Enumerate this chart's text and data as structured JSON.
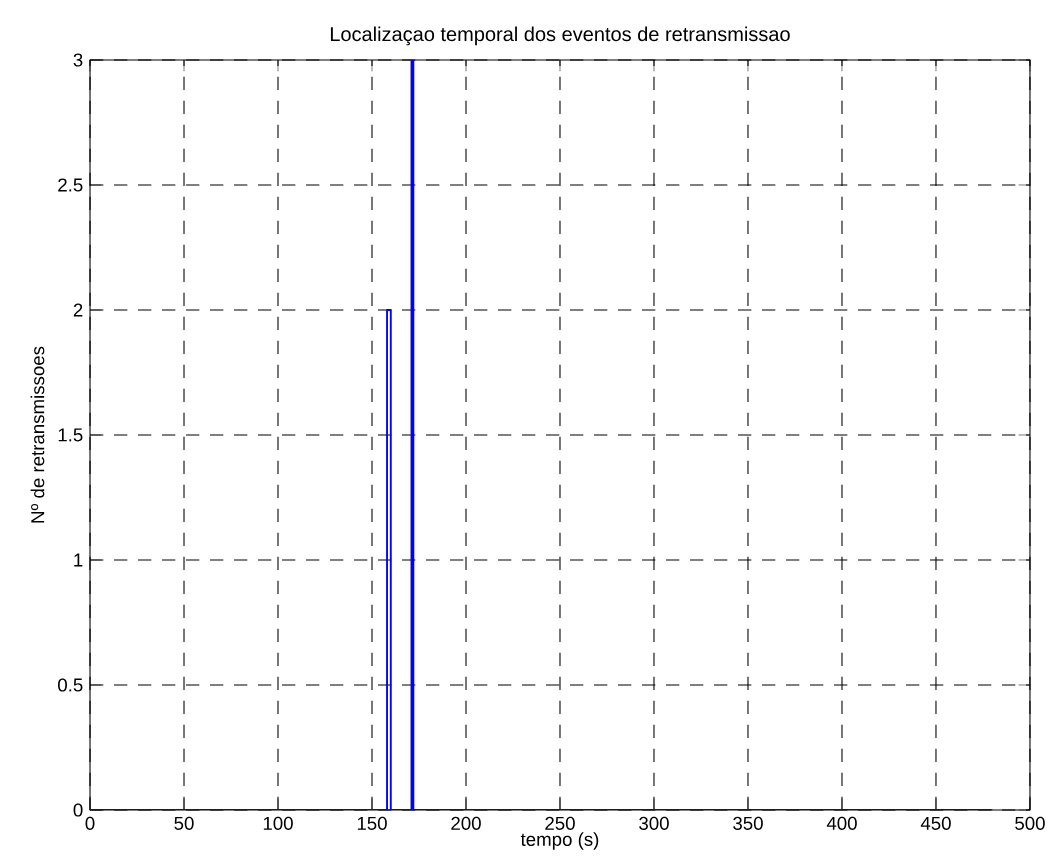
{
  "chart_data": {
    "type": "line",
    "title": "Localizaçao temporal dos eventos de retransmissao",
    "xlabel": "tempo (s)",
    "ylabel": "Nº de retransmissoes",
    "x": [
      0,
      158,
      158,
      160,
      160,
      171,
      171,
      172,
      172,
      480
    ],
    "series": [
      {
        "color": "#0000ff",
        "values": [
          0,
          0,
          2,
          2,
          0,
          0,
          3,
          3,
          0,
          0
        ]
      }
    ],
    "xlim": [
      0,
      500
    ],
    "xticks": [
      0,
      50,
      100,
      150,
      200,
      250,
      300,
      350,
      400,
      450,
      500
    ],
    "ylim": [
      0,
      3
    ],
    "yticks": [
      0,
      0.5,
      1,
      1.5,
      2,
      2.5,
      3
    ],
    "grid": true,
    "marker": "none",
    "line_style": "solid"
  }
}
